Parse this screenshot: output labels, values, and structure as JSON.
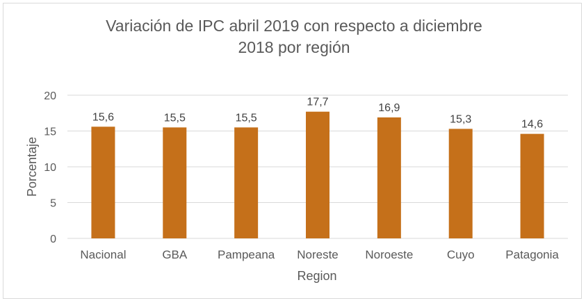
{
  "chart_data": {
    "type": "bar",
    "title_lines": [
      "Variación de IPC abril 2019 con respecto a diciembre",
      "2018 por región"
    ],
    "xlabel": "Region",
    "ylabel": "Porcentaje",
    "categories": [
      "Nacional",
      "GBA",
      "Pampeana",
      "Noreste",
      "Noroeste",
      "Cuyo",
      "Patagonia"
    ],
    "values": [
      15.6,
      15.5,
      15.5,
      17.7,
      16.9,
      15.3,
      14.6
    ],
    "data_labels": [
      "15,6",
      "15,5",
      "15,5",
      "17,7",
      "16,9",
      "15,3",
      "14,6"
    ],
    "yticks": [
      0,
      5,
      10,
      15,
      20
    ],
    "ylim": [
      0,
      20
    ],
    "grid": true,
    "legend": "none",
    "bar_color": "#c5701a",
    "gridline_color": "#d9d9d9"
  }
}
